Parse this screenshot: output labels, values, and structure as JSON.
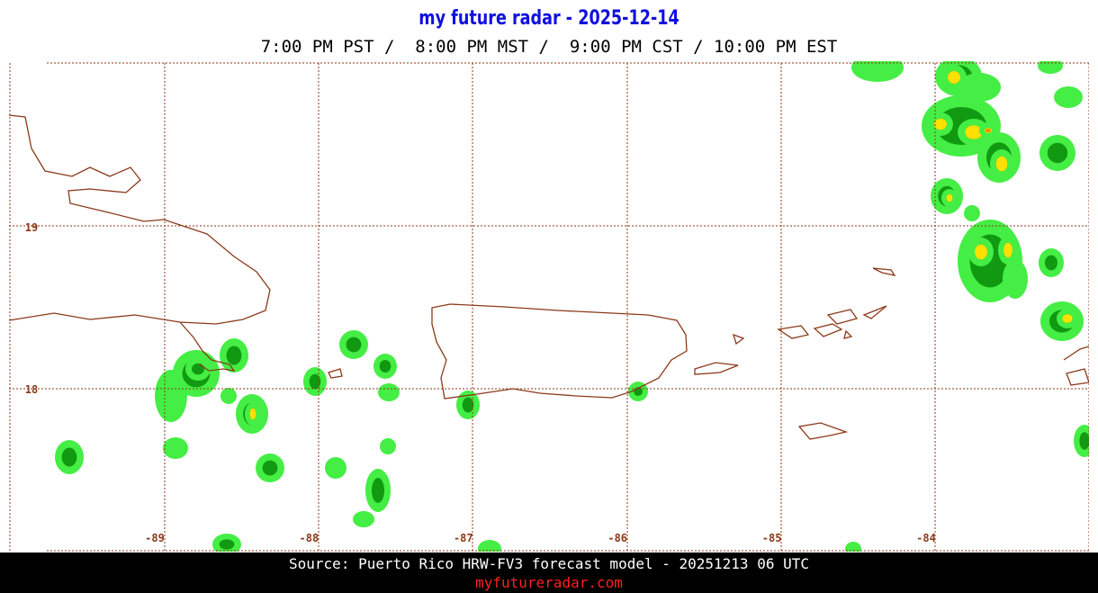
{
  "header": {
    "title": "my future radar - 2025-12-14",
    "subtitle": "7:00 PM PST /  8:00 PM MST /  9:00 PM CST / 10:00 PM EST"
  },
  "map": {
    "lat_labels": [
      "19",
      "18"
    ],
    "lon_labels": [
      "-89",
      "-88",
      "-87",
      "-86",
      "-85",
      "-84"
    ]
  },
  "footer": {
    "source": "Source: Puerto Rico HRW-FV3 forecast model - 20251213 06 UTC",
    "site": "myfutureradar.com"
  }
}
